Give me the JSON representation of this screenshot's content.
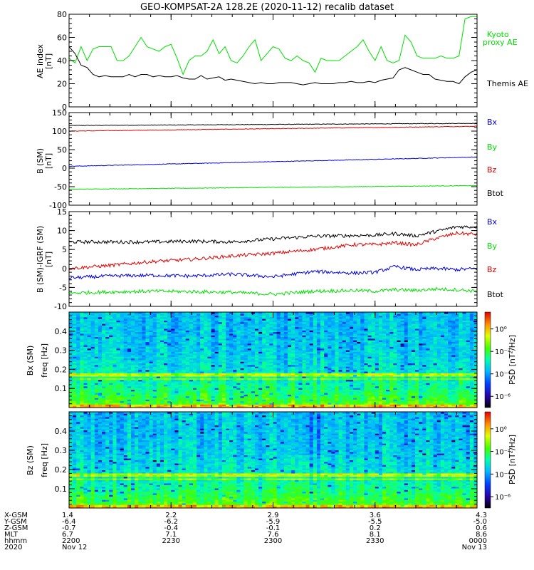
{
  "title": "GEO-KOMPSAT-2A 128.2E (2020-11-12) recalib dataset",
  "colors": {
    "black": "#000000",
    "green": "#00e000",
    "red": "#e00000",
    "blue": "#0000e0"
  },
  "chart_data": [
    {
      "id": "ae",
      "type": "line",
      "ylabel": "AE index",
      "yunit": "[nT]",
      "ylim": [
        0,
        80
      ],
      "yticks": [
        "0",
        "20",
        "40",
        "60",
        "80"
      ],
      "legend": [
        "Kyoto",
        "proxy AE",
        "Themis AE"
      ],
      "series": [
        {
          "name": "Kyoto proxy AE",
          "color": "#00e000",
          "values": [
            42,
            38,
            52,
            40,
            50,
            52,
            52,
            52,
            40,
            40,
            44,
            52,
            60,
            52,
            50,
            48,
            52,
            54,
            42,
            28,
            40,
            44,
            44,
            48,
            58,
            46,
            52,
            40,
            38,
            44,
            52,
            58,
            40,
            46,
            52,
            50,
            42,
            40,
            44,
            40,
            38,
            30,
            42,
            40,
            40,
            40,
            44,
            48,
            52,
            58,
            48,
            40,
            52,
            40,
            38,
            40,
            62,
            56,
            44,
            42,
            42,
            42,
            44,
            42,
            42,
            44,
            76,
            78,
            78
          ]
        },
        {
          "name": "Themis AE",
          "color": "#000000",
          "values": [
            52,
            46,
            36,
            34,
            28,
            26,
            27,
            26,
            26,
            26,
            28,
            26,
            28,
            28,
            26,
            27,
            26,
            26,
            27,
            25,
            24,
            24,
            27,
            24,
            25,
            26,
            23,
            24,
            23,
            22,
            21,
            20,
            21,
            20,
            20,
            21,
            21,
            21,
            20,
            19,
            20,
            21,
            20,
            20,
            20,
            21,
            21,
            22,
            21,
            21,
            22,
            21,
            23,
            24,
            25,
            32,
            34,
            32,
            30,
            28,
            28,
            24,
            23,
            22,
            22,
            20,
            26,
            30,
            32
          ]
        }
      ]
    },
    {
      "id": "bsm",
      "type": "line",
      "ylabel": "B (SM)",
      "yunit": "[nT]",
      "ylim": [
        -100,
        150
      ],
      "yticks": [
        "-100",
        "-50",
        "0",
        "50",
        "100",
        "150"
      ],
      "legend": [
        "Bx",
        "By",
        "Bz",
        "Btot"
      ],
      "series": [
        {
          "name": "Btot",
          "color": "#000000",
          "x": [
            0,
            1
          ],
          "values": [
            115,
            121
          ]
        },
        {
          "name": "Bz",
          "color": "#e00000",
          "x": [
            0,
            1
          ],
          "values": [
            100,
            113
          ]
        },
        {
          "name": "Bx",
          "color": "#0000e0",
          "x": [
            0,
            1
          ],
          "values": [
            5,
            30
          ]
        },
        {
          "name": "By",
          "color": "#00e000",
          "x": [
            0,
            1
          ],
          "values": [
            -57,
            -47
          ]
        }
      ]
    },
    {
      "id": "bres",
      "type": "line",
      "ylabel": "B (SM)-IGRF (SM)",
      "yunit": "[nT]",
      "ylim": [
        -10,
        15
      ],
      "yticks": [
        "-10",
        "-5",
        "0",
        "5",
        "10",
        "15"
      ],
      "legend": [
        "Bx",
        "By",
        "Bz",
        "Btot"
      ],
      "series": [
        {
          "name": "Btot",
          "color": "#000000",
          "x": [
            0,
            0.1,
            0.2,
            0.3,
            0.4,
            0.5,
            0.6,
            0.7,
            0.75,
            0.8,
            0.85,
            0.9,
            0.95,
            1.0
          ],
          "values": [
            7,
            7,
            7,
            7.2,
            7,
            7.8,
            8.5,
            8.7,
            8.8,
            9.2,
            8.6,
            9.8,
            11,
            11
          ]
        },
        {
          "name": "Bz",
          "color": "#e00000",
          "x": [
            0,
            0.1,
            0.2,
            0.3,
            0.4,
            0.5,
            0.6,
            0.7,
            0.75,
            0.8,
            0.85,
            0.9,
            0.95,
            1.0
          ],
          "values": [
            0,
            0.8,
            1.8,
            2.4,
            3.3,
            4,
            5,
            6.3,
            6.3,
            6.8,
            6.2,
            8,
            9.3,
            9
          ]
        },
        {
          "name": "Bx",
          "color": "#0000e0",
          "x": [
            0,
            0.1,
            0.2,
            0.3,
            0.4,
            0.5,
            0.6,
            0.7,
            0.75,
            0.8,
            0.85,
            0.9,
            0.95,
            1.0
          ],
          "values": [
            -2.5,
            -2,
            -1.8,
            -2,
            -1.5,
            -2.2,
            -0.8,
            -1.2,
            -1,
            0.5,
            -0.3,
            0,
            -0.3,
            0
          ]
        },
        {
          "name": "By",
          "color": "#00e000",
          "x": [
            0,
            0.1,
            0.2,
            0.3,
            0.4,
            0.5,
            0.6,
            0.7,
            0.75,
            0.8,
            0.85,
            0.9,
            0.95,
            1.0
          ],
          "values": [
            -6.5,
            -6.2,
            -6,
            -6.1,
            -6.3,
            -6.8,
            -6,
            -5.8,
            -6,
            -5.6,
            -5.8,
            -5.4,
            -5.6,
            -6
          ]
        }
      ]
    },
    {
      "id": "spec-bx",
      "type": "heatmap",
      "ylabel": "Bx (SM)",
      "yunit": "freq [Hz]",
      "ylim": [
        0,
        0.5
      ],
      "yticks": [
        "0.1",
        "0.2",
        "0.3",
        "0.4"
      ],
      "colorbar_label": "PSD [nT²/Hz]",
      "colorbar_ticks": [
        "10⁰",
        "10⁻²",
        "10⁻⁴",
        "10⁻⁶"
      ],
      "colorbar_range": [
        -7,
        1.5
      ]
    },
    {
      "id": "spec-bz",
      "type": "heatmap",
      "ylabel": "Bz (SM)",
      "yunit": "freq [Hz]",
      "ylim": [
        0,
        0.5
      ],
      "yticks": [
        "0.1",
        "0.2",
        "0.3",
        "0.4"
      ],
      "colorbar_label": "PSD [nT²/Hz]",
      "colorbar_ticks": [
        "10⁰",
        "10⁻²",
        "10⁻⁴",
        "10⁻⁶"
      ],
      "colorbar_range": [
        -7,
        1.5
      ]
    }
  ],
  "time_axis": {
    "row_labels": [
      "X-GSM",
      "Y-GSM",
      "Z-GSM",
      "MLT",
      "hhmm",
      "2020"
    ],
    "columns": [
      [
        "1.4",
        "-6.4",
        "-0.7",
        "6.7",
        "2200",
        "Nov 12"
      ],
      [
        "2.2",
        "-6.2",
        "-0.4",
        "7.1",
        "2230",
        ""
      ],
      [
        "2.9",
        "-5.9",
        "-0.1",
        "7.6",
        "2300",
        ""
      ],
      [
        "3.6",
        "-5.5",
        "0.2",
        "8.1",
        "2330",
        ""
      ],
      [
        "4.3",
        "-5.0",
        "0.6",
        "8.6",
        "0000",
        "Nov 13"
      ]
    ]
  }
}
